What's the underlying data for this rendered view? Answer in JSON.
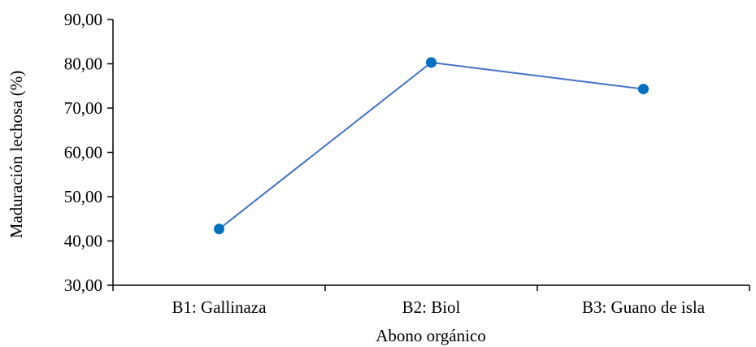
{
  "chart_data": {
    "type": "line",
    "title": "",
    "xlabel": "Abono orgánico",
    "ylabel": "Maduración lechosa (%)",
    "categories": [
      "B1: Gallinaza",
      "B2: Biol",
      "B3: Guano de isla"
    ],
    "series": [
      {
        "values": [
          42.7,
          80.3,
          74.3
        ]
      }
    ],
    "ylim": [
      30,
      90
    ],
    "yticks": [
      "30,00",
      "40,00",
      "50,00",
      "60,00",
      "70,00",
      "80,00",
      "90,00"
    ],
    "grid": false,
    "legend": "none",
    "colors": {
      "line": "#4472c4",
      "marker": "#0070c0",
      "axis": "#000000"
    }
  }
}
